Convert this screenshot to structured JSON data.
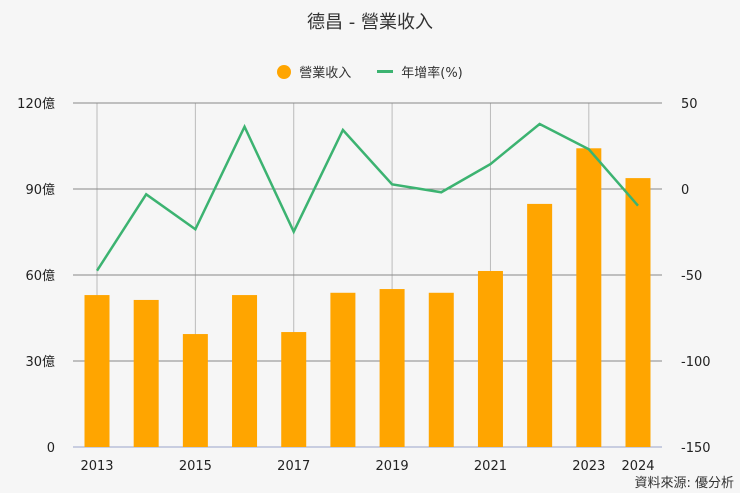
{
  "title": "德昌 - 營業收入",
  "legend": {
    "revenue_label": "營業收入",
    "growth_label": "年增率(%)"
  },
  "colors": {
    "bar": "#FFA500",
    "line": "#3CB371",
    "grid": "#888888",
    "background": "#f6f6f6"
  },
  "source": "資料來源: 優分析",
  "chart_data": {
    "type": "bar",
    "title": "德昌 - 營業收入",
    "categories": [
      "2013",
      "2014",
      "2015",
      "2016",
      "2017",
      "2018",
      "2019",
      "2020",
      "2021",
      "2022",
      "2023",
      "2024"
    ],
    "x_tick_labels": [
      "2013",
      "",
      "2015",
      "",
      "2017",
      "",
      "2019",
      "",
      "2021",
      "",
      "2023",
      "2024"
    ],
    "series": [
      {
        "name": "營業收入",
        "type": "bar",
        "axis": "left",
        "unit": "億",
        "values": [
          53.0,
          51.3,
          39.4,
          53.0,
          40.1,
          53.8,
          55.1,
          53.8,
          61.4,
          84.8,
          104.2,
          93.8
        ]
      },
      {
        "name": "年增率(%)",
        "type": "line",
        "axis": "right",
        "values": [
          -47.5,
          -3.1,
          -23.4,
          36.2,
          -24.8,
          34.3,
          2.7,
          -1.9,
          14.5,
          37.8,
          23.1,
          -9.7
        ]
      }
    ],
    "left_axis": {
      "ylim": [
        0,
        120
      ],
      "ticks": [
        0,
        30,
        60,
        90,
        120
      ],
      "tick_labels": [
        "0",
        "30億",
        "60億",
        "90億",
        "120億"
      ]
    },
    "right_axis": {
      "ylim": [
        -150,
        50
      ],
      "ticks": [
        -150,
        -100,
        -50,
        0,
        50
      ],
      "tick_labels": [
        "-150",
        "-100",
        "-50",
        "0",
        "50"
      ]
    },
    "xlabel": "",
    "ylabel": "",
    "grid": true,
    "legend_position": "top"
  }
}
